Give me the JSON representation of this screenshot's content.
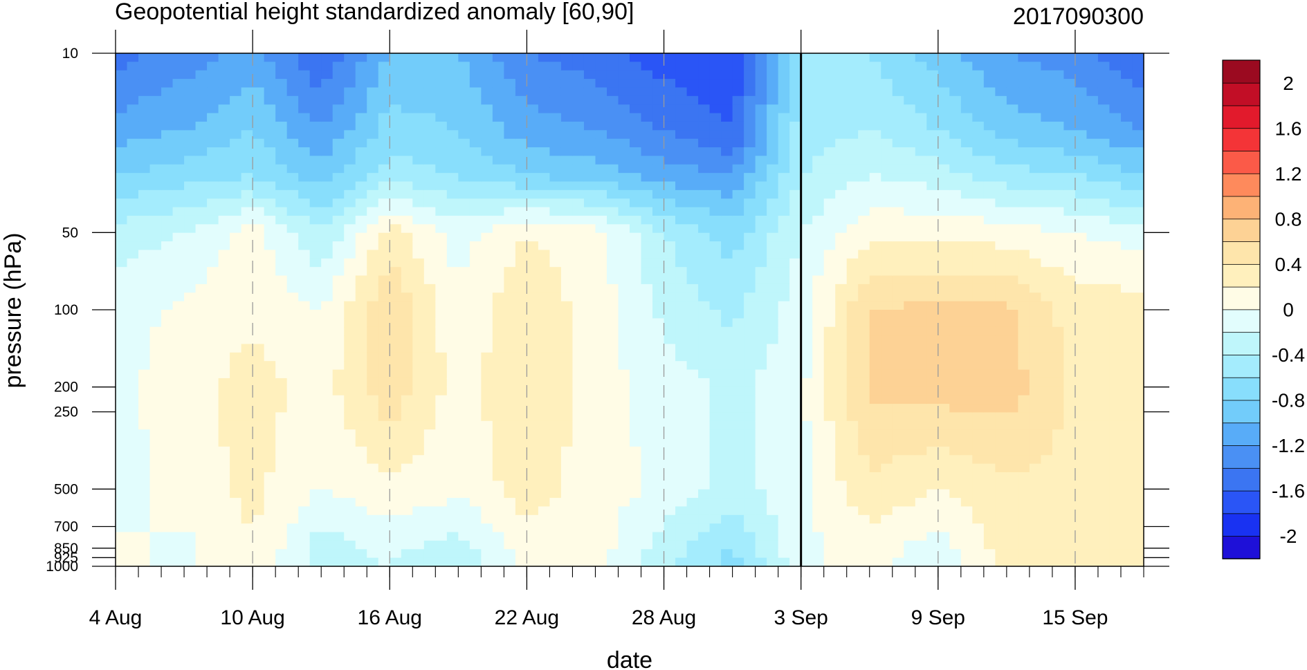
{
  "chart_data": {
    "type": "heatmap",
    "title": "Geopotential height standardized anomaly [60,90]",
    "date_label": "2017090300",
    "xlabel": "date",
    "ylabel": "pressure (hPa)",
    "x_ticks": [
      {
        "label": "4 Aug",
        "day": 0
      },
      {
        "label": "10 Aug",
        "day": 6
      },
      {
        "label": "16 Aug",
        "day": 12
      },
      {
        "label": "22 Aug",
        "day": 18
      },
      {
        "label": "28 Aug",
        "day": 24
      },
      {
        "label": "3 Sep",
        "day": 30
      },
      {
        "label": "9 Sep",
        "day": 36
      },
      {
        "label": "15 Sep",
        "day": 42
      }
    ],
    "x_range_days": [
      0,
      45
    ],
    "current_date_day": 30,
    "y_ticks": [
      10,
      50,
      100,
      200,
      250,
      500,
      700,
      850,
      925,
      1000
    ],
    "y_range_hpa": [
      10,
      1000
    ],
    "y_scale": "log",
    "colorbar": {
      "levels": [
        -2.2,
        -2.0,
        -1.8,
        -1.6,
        -1.4,
        -1.2,
        -1.0,
        -0.8,
        -0.6,
        -0.4,
        -0.2,
        0,
        0.2,
        0.4,
        0.6,
        0.8,
        1.0,
        1.2,
        1.4,
        1.6,
        1.8,
        2.0,
        2.2
      ],
      "colors": [
        "#1e10d8",
        "#1932f2",
        "#2a55f6",
        "#3b75f2",
        "#4a90f4",
        "#58acf8",
        "#72ccfa",
        "#88defc",
        "#a4ecfd",
        "#bff6fb",
        "#e2fdfd",
        "#fffce6",
        "#fff0bd",
        "#fee5ab",
        "#fdd295",
        "#fdb276",
        "#fe8a5c",
        "#fb5a48",
        "#f43437",
        "#e21a2c",
        "#c20e26",
        "#9b0a20"
      ],
      "labels": [
        {
          "text": "2",
          "value": 2.0
        },
        {
          "text": "1.6",
          "value": 1.6
        },
        {
          "text": "1.2",
          "value": 1.2
        },
        {
          "text": "0.8",
          "value": 0.8
        },
        {
          "text": "0.4",
          "value": 0.4
        },
        {
          "text": "0",
          "value": 0
        },
        {
          "text": "-0.4",
          "value": -0.4
        },
        {
          "text": "-0.8",
          "value": -0.8
        },
        {
          "text": "-1.2",
          "value": -1.2
        },
        {
          "text": "-1.6",
          "value": -1.6
        },
        {
          "text": "-2",
          "value": -2.0
        }
      ]
    },
    "field_hint": "standardized anomaly by day (0-45) and pressure (10-1000 hPa)",
    "anomaly_nodes": {
      "days": [
        0,
        3,
        6,
        9,
        12,
        15,
        18,
        21,
        24,
        27,
        30,
        33,
        36,
        39,
        42,
        45
      ],
      "pressures": [
        10,
        20,
        30,
        50,
        100,
        200,
        500,
        850,
        1000
      ],
      "values": [
        [
          -1.5,
          -1.3,
          -1.1,
          -1.6,
          -1.0,
          -1.0,
          -1.4,
          -1.5,
          -1.7,
          -1.8,
          -0.6,
          -0.6,
          -0.9,
          -1.2,
          -1.3,
          -1.6
        ],
        [
          -1.1,
          -1.0,
          -0.8,
          -1.2,
          -0.7,
          -0.8,
          -1.1,
          -1.2,
          -1.4,
          -1.6,
          -0.5,
          -0.4,
          -0.6,
          -0.9,
          -1.0,
          -1.2
        ],
        [
          -0.8,
          -0.7,
          -0.6,
          -0.9,
          -0.5,
          -0.6,
          -0.8,
          -0.9,
          -1.1,
          -1.2,
          -0.4,
          -0.2,
          -0.3,
          -0.5,
          -0.6,
          -0.8
        ],
        [
          -0.3,
          -0.2,
          0.1,
          -0.4,
          0.3,
          -0.1,
          0.2,
          0.1,
          -0.4,
          -0.7,
          -0.2,
          0.15,
          0.15,
          0.1,
          0.0,
          -0.1
        ],
        [
          -0.1,
          0.05,
          0.15,
          0.0,
          0.6,
          0.05,
          0.35,
          0.1,
          -0.25,
          -0.45,
          -0.1,
          0.6,
          0.65,
          0.65,
          0.3,
          0.3
        ],
        [
          -0.05,
          0.1,
          0.3,
          0.1,
          0.55,
          0.1,
          0.4,
          0.1,
          -0.1,
          -0.25,
          -0.05,
          0.65,
          0.7,
          0.7,
          0.35,
          0.3
        ],
        [
          -0.1,
          0.1,
          0.25,
          0.0,
          0.15,
          0.05,
          0.3,
          0.1,
          -0.05,
          -0.3,
          -0.05,
          0.35,
          0.2,
          0.35,
          0.35,
          0.35
        ],
        [
          0.05,
          -0.05,
          0.2,
          -0.3,
          -0.15,
          -0.3,
          0.1,
          0.1,
          -0.3,
          -0.6,
          -0.05,
          0.1,
          -0.1,
          0.3,
          0.35,
          0.35
        ],
        [
          0.05,
          -0.05,
          0.15,
          -0.3,
          -0.2,
          -0.35,
          0.05,
          0.05,
          -0.35,
          -0.7,
          -0.05,
          0.1,
          -0.2,
          0.3,
          0.35,
          0.35
        ]
      ]
    }
  }
}
